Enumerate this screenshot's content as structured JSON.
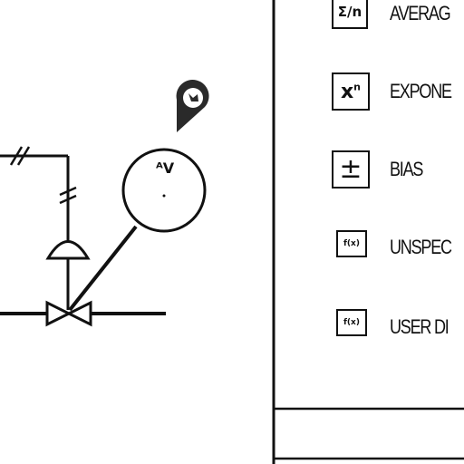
{
  "instrument": {
    "label": "ᴬV"
  },
  "legend": {
    "items": [
      {
        "key": "average",
        "symbol": "Σ/n",
        "label": "AVERAG"
      },
      {
        "key": "exponent",
        "symbol": "x",
        "symbol_sup": "n",
        "label": "EXPONE"
      },
      {
        "key": "bias",
        "symbol": "±",
        "label": "BIAS"
      },
      {
        "key": "unspecified",
        "symbol": "f(x)",
        "label": "UNSPEC"
      },
      {
        "key": "user-defined",
        "symbol": "f(x)",
        "label": "USER DI"
      }
    ]
  },
  "icons": [
    "wireless-pin-icon",
    "control-valve-icon",
    "instrument-bubble-icon"
  ]
}
